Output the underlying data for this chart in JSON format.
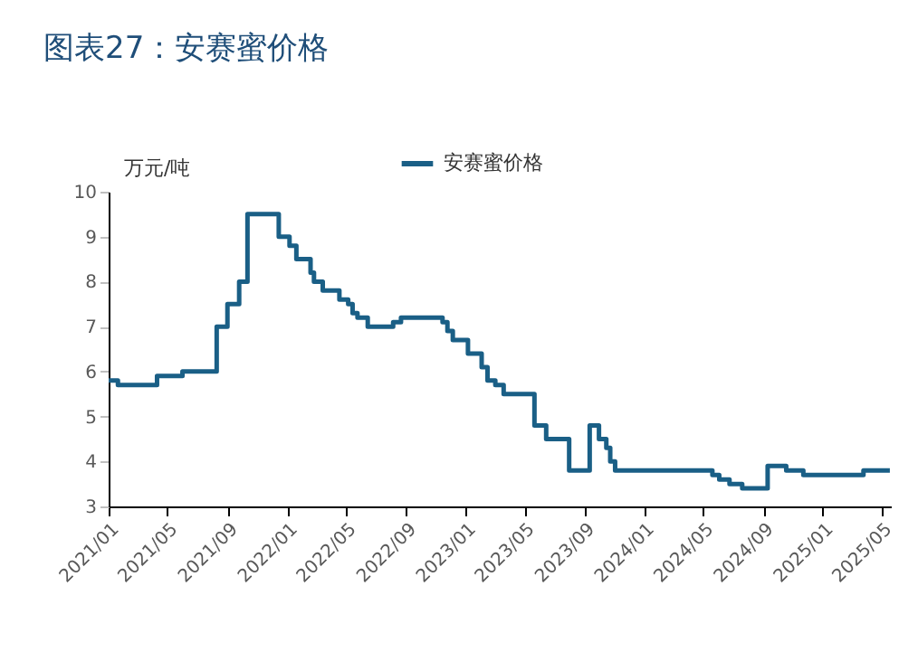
{
  "chart_data": {
    "type": "step",
    "title": "图表27：安赛蜜价格",
    "ylabel": "万元/吨",
    "x": [
      "2021-01-01",
      "2021-01-20",
      "2021-04-10",
      "2021-06-01",
      "2021-08-10",
      "2021-09-01",
      "2021-09-25",
      "2021-10-12",
      "2021-12-15",
      "2022-01-06",
      "2022-01-20",
      "2022-02-18",
      "2022-02-25",
      "2022-03-15",
      "2022-04-18",
      "2022-05-06",
      "2022-05-15",
      "2022-05-25",
      "2022-06-15",
      "2022-08-06",
      "2022-08-22",
      "2022-11-15",
      "2022-11-25",
      "2022-12-06",
      "2023-01-06",
      "2023-02-03",
      "2023-02-15",
      "2023-03-03",
      "2023-03-20",
      "2023-05-22",
      "2023-06-15",
      "2023-08-01",
      "2023-09-12",
      "2023-10-01",
      "2023-10-16",
      "2023-10-24",
      "2023-11-03",
      "2024-05-20",
      "2024-06-03",
      "2024-06-24",
      "2024-07-20",
      "2024-09-10",
      "2024-10-18",
      "2024-11-22",
      "2025-03-25",
      "2025-05-18"
    ],
    "series": [
      {
        "name": "安赛蜜价格",
        "color": "#1a5f86",
        "values": [
          5.8,
          5.7,
          5.9,
          6.0,
          7.0,
          7.5,
          8.0,
          9.5,
          9.0,
          8.8,
          8.5,
          8.2,
          8.0,
          7.8,
          7.6,
          7.5,
          7.3,
          7.2,
          7.0,
          7.1,
          7.2,
          7.1,
          6.9,
          6.7,
          6.4,
          6.1,
          5.8,
          5.7,
          5.5,
          4.8,
          4.5,
          3.8,
          4.8,
          4.5,
          4.3,
          4.0,
          3.8,
          3.7,
          3.6,
          3.5,
          3.4,
          3.9,
          3.8,
          3.7,
          3.8,
          3.8
        ]
      }
    ],
    "xlim": [
      "2021-01-01",
      "2025-05-20"
    ],
    "xticks": [
      {
        "value": "2021-01",
        "label": "2021/01"
      },
      {
        "value": "2021-05",
        "label": "2021/05"
      },
      {
        "value": "2021-09",
        "label": "2021/09"
      },
      {
        "value": "2022-01",
        "label": "2022/01"
      },
      {
        "value": "2022-05",
        "label": "2022/05"
      },
      {
        "value": "2022-09",
        "label": "2022/09"
      },
      {
        "value": "2023-01",
        "label": "2023/01"
      },
      {
        "value": "2023-05",
        "label": "2023/05"
      },
      {
        "value": "2023-09",
        "label": "2023/09"
      },
      {
        "value": "2024-01",
        "label": "2024/01"
      },
      {
        "value": "2024-05",
        "label": "2024/05"
      },
      {
        "value": "2024-09",
        "label": "2024/09"
      },
      {
        "value": "2025-01",
        "label": "2025/01"
      },
      {
        "value": "2025-05",
        "label": "2025/05"
      }
    ],
    "ylim": [
      3,
      10
    ],
    "yticks": [
      3,
      4,
      5,
      6,
      7,
      8,
      9,
      10
    ],
    "legend": "top",
    "grid": false
  }
}
